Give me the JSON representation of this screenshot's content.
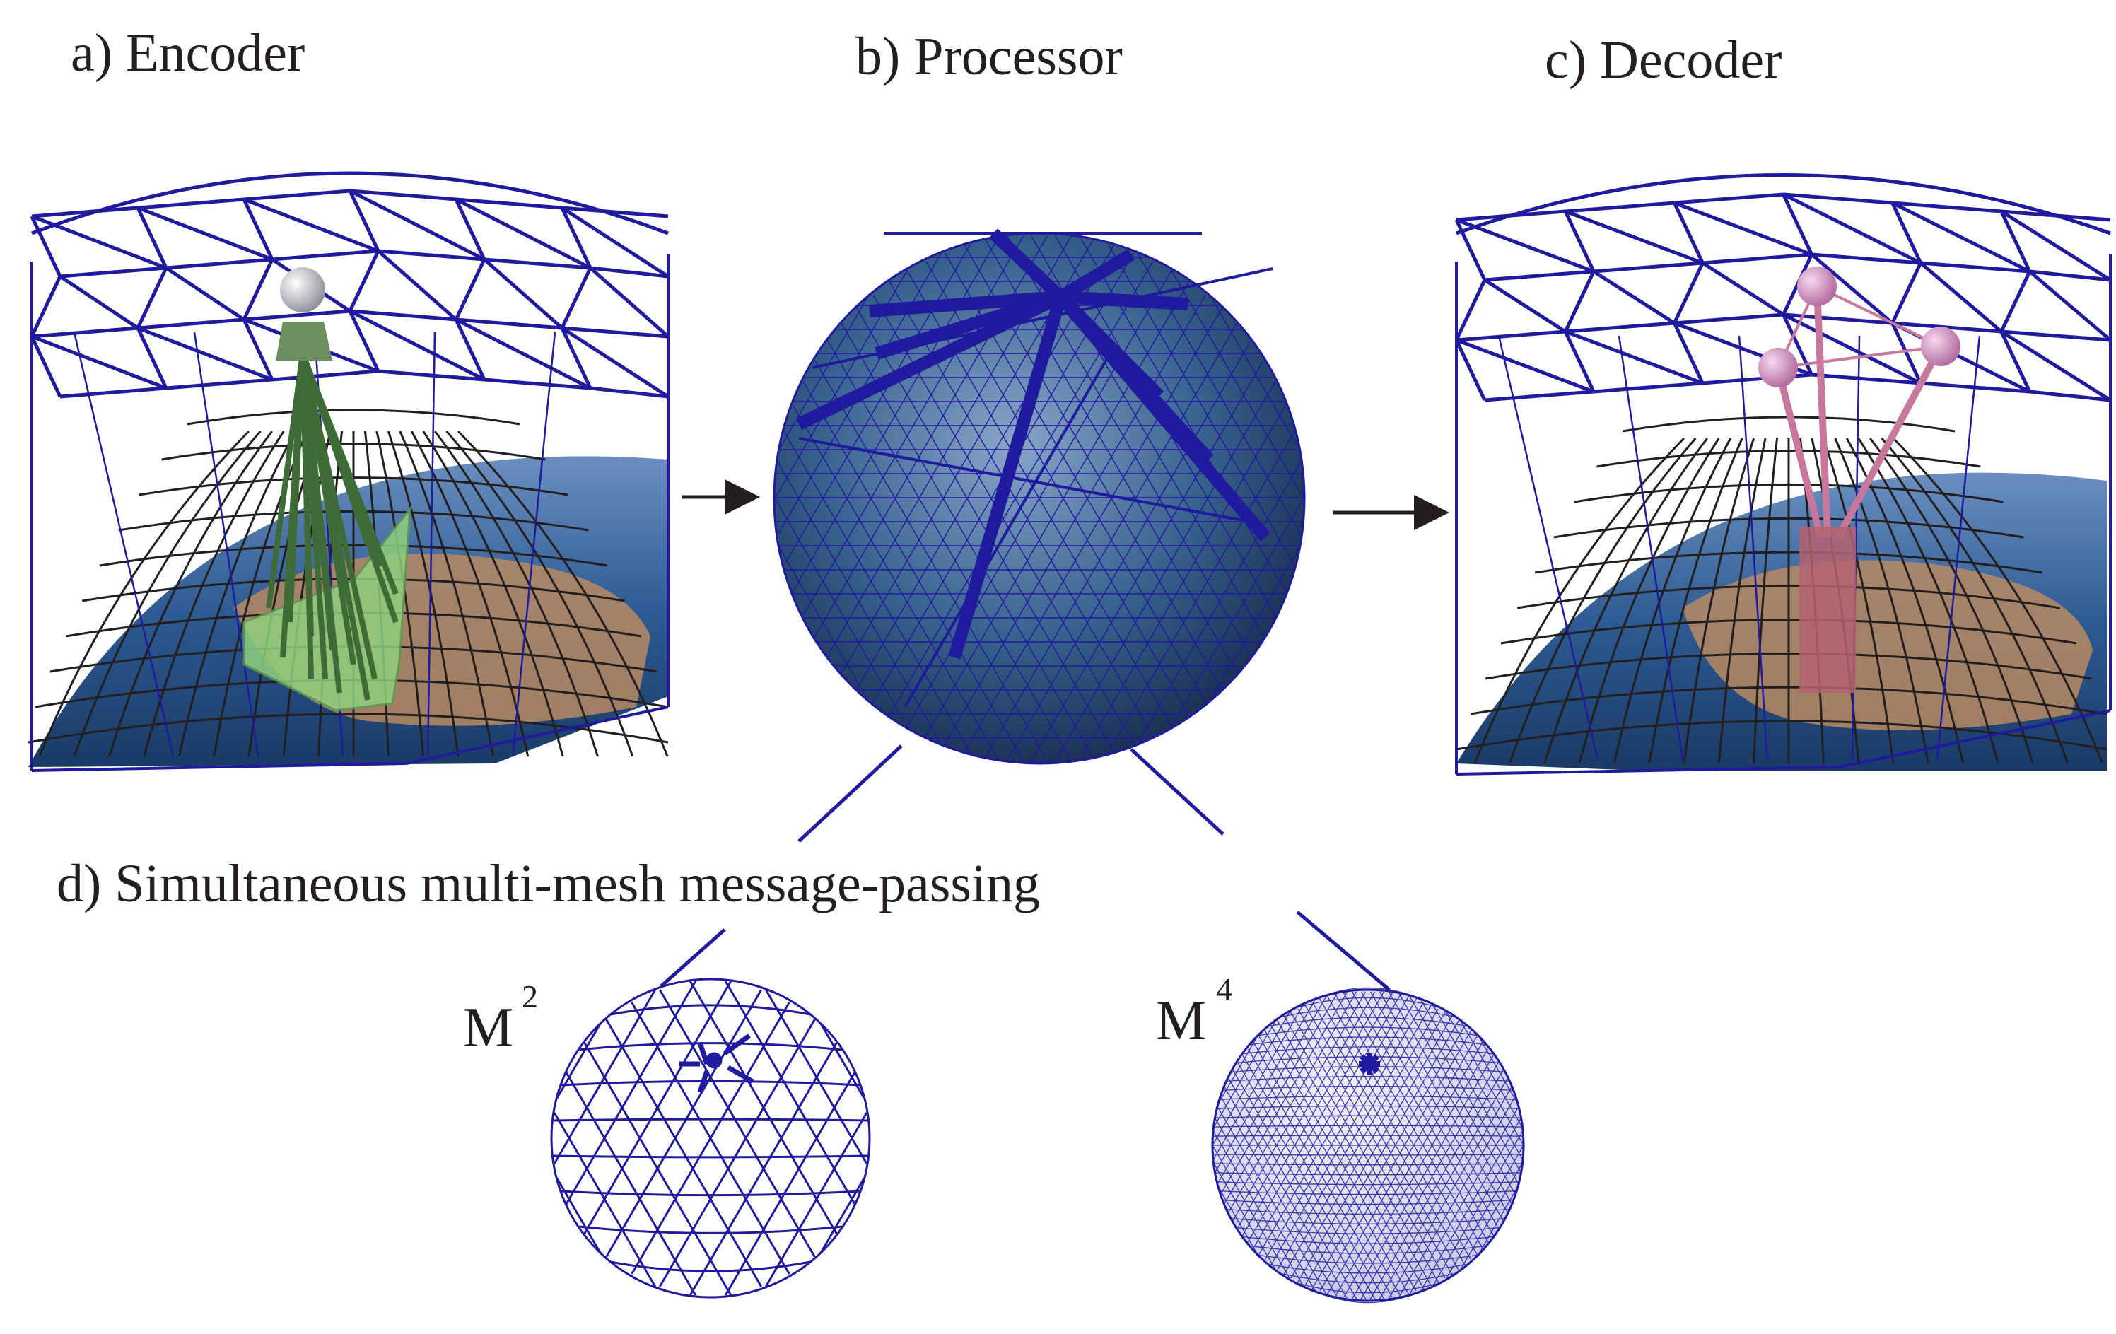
{
  "panels": {
    "encoder": {
      "label": "a) Encoder"
    },
    "processor": {
      "label": "b) Processor"
    },
    "decoder": {
      "label": "c) Decoder"
    },
    "multimesh": {
      "label": "d) Simultaneous multi-mesh message-passing"
    }
  },
  "meshes": {
    "m2": {
      "letter": "M",
      "exponent": "2"
    },
    "m4": {
      "letter": "M",
      "exponent": "4"
    }
  },
  "colors": {
    "mesh": "#1f1a9e",
    "grid": "#231f20",
    "encoder_edges": "#5c9a4e",
    "decoder_edges": "#c7789c",
    "ocean": "#1d4f8c",
    "land": "#b88a60",
    "fill_m4": "#d6d6f0"
  }
}
